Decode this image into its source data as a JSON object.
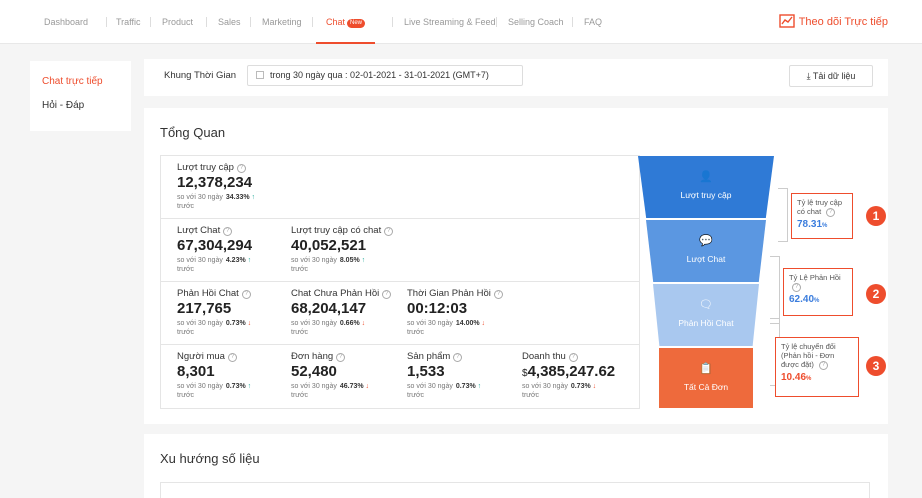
{
  "nav": {
    "tabs": [
      "Dashboard",
      "Traffic",
      "Product",
      "Sales",
      "Marketing",
      "Chat",
      "Live Streaming & Feed",
      "Selling Coach",
      "FAQ"
    ],
    "chat_badge": "New",
    "follow_live": "Theo dõi Trực tiếp"
  },
  "sidebar": {
    "items": [
      "Chat trực tiếp",
      "Hỏi - Đáp"
    ]
  },
  "filter": {
    "label": "Khung Thời Gian",
    "date_range": "trong 30 ngày qua : 02-01-2021 - 31-01-2021 (GMT+7)",
    "download": "Tải dữ liệu"
  },
  "overview": {
    "title": "Tổng Quan",
    "compare_label": "so với 30 ngày",
    "compare_label2": "trước",
    "metrics": {
      "visits": {
        "name": "Lượt truy cập",
        "value": "12,378,234",
        "change": "34.33%",
        "dir": "up"
      },
      "chats": {
        "name": "Lượt Chat",
        "value": "67,304,294",
        "change": "4.23%",
        "dir": "up"
      },
      "visits_with_chat": {
        "name": "Lượt truy cập có chat",
        "value": "40,052,521",
        "change": "8.05%",
        "dir": "up"
      },
      "chat_replies": {
        "name": "Phản Hồi Chat",
        "value": "217,765",
        "change": "0.73%",
        "dir": "down"
      },
      "unreplied": {
        "name": "Chat Chưa Phản Hồi",
        "value": "68,204,147",
        "change": "0.66%",
        "dir": "down"
      },
      "reply_time": {
        "name": "Thời Gian Phản Hồi",
        "value": "00:12:03",
        "change": "14.00%",
        "dir": "down"
      },
      "buyers": {
        "name": "Người mua",
        "value": "8,301",
        "change": "0.73%",
        "dir": "up"
      },
      "orders": {
        "name": "Đơn hàng",
        "value": "52,480",
        "change": "46.73%",
        "dir": "down"
      },
      "products": {
        "name": "Sản phẩm",
        "value": "1,533",
        "change": "0.73%",
        "dir": "up"
      },
      "revenue": {
        "name": "Doanh thu",
        "value": "4,385,247.62",
        "currency": "$",
        "change": "0.73%",
        "dir": "down"
      }
    },
    "funnel": {
      "stages": [
        "Lượt truy cập",
        "Lượt Chat",
        "Phản Hồi Chat",
        "Tất Cả Đơn"
      ],
      "colors": [
        "#2f7ad6",
        "#5b97e1",
        "#a9c8ef",
        "#ee6a3c"
      ]
    },
    "rates": [
      {
        "num": "1",
        "label": "Tỷ lệ truy cập có chat",
        "value": "78.31",
        "unit": "%"
      },
      {
        "num": "2",
        "label": "Tỷ Lệ Phản Hồi",
        "value": "62.40",
        "unit": "%"
      },
      {
        "num": "3",
        "label": "Tỷ lệ chuyển đổi (Phản hồi - Đơn được đặt)",
        "value": "10.46",
        "unit": "%"
      }
    ]
  },
  "trends": {
    "title": "Xu hướng số liệu"
  }
}
